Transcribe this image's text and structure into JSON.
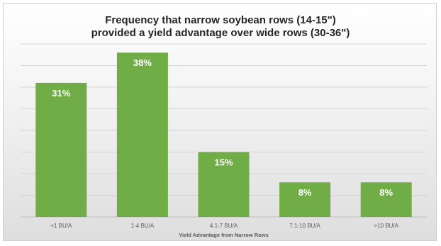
{
  "chart_data": {
    "type": "bar",
    "title_lines": [
      "Frequency that narrow soybean rows (14-15\")",
      "provided a yield advantage over wide rows (30-36\")"
    ],
    "xlabel": "Yield Advantage from Narrow Rows",
    "ylabel": "",
    "categories": [
      "<1 BU/A",
      "1-4 BU/A",
      "4.1-7 BU/A",
      "7.1-10 BU/A",
      ">10 BU/A"
    ],
    "values": [
      31,
      38,
      15,
      8,
      8
    ],
    "data_labels": [
      "31%",
      "38%",
      "15%",
      "8%",
      "8%"
    ],
    "ylim": [
      0,
      40
    ],
    "grid": true,
    "bar_color": "#70ad47",
    "label_color": "#ffffff"
  }
}
